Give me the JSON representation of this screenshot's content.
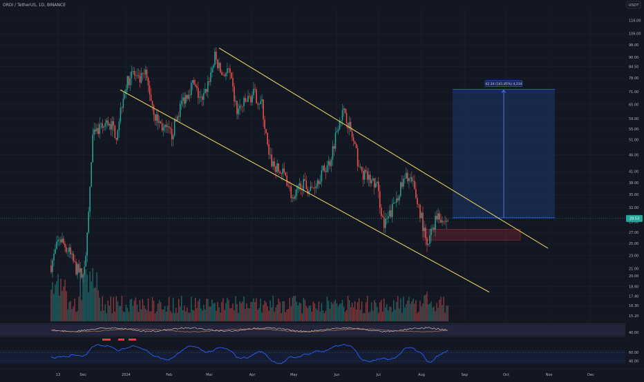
{
  "header": {
    "symbol": "ORDI / TetherUS, 1D, BINANCE"
  },
  "price_axis": {
    "currency": "USDT",
    "labels": [
      "116.00",
      "106.00",
      "98.00",
      "90.00",
      "84.50",
      "78.00",
      "71.00",
      "65.00",
      "59.00",
      "55.00",
      "51.00",
      "46.00",
      "41.00",
      "38.00",
      "35.00",
      "32.00",
      "29.00",
      "27.00",
      "25.00",
      "23.00",
      "21.00",
      "20.00",
      "18.60",
      "17.40",
      "16.30",
      "15.20"
    ],
    "current_price_tag": "29.53",
    "range": [
      14.5,
      125
    ]
  },
  "time_axis": {
    "labels": [
      "13",
      "Dec",
      "2024",
      "Feb",
      "Mar",
      "Apr",
      "May",
      "Jun",
      "Jul",
      "Aug",
      "Sep",
      "Oct",
      "Nov",
      "Dec"
    ]
  },
  "measure": {
    "label": "42.34 (141.85%) 4,234",
    "from_price": 29.85,
    "to_price": 72.2
  },
  "demand_zone": {
    "low": 25.6,
    "high": 27.6
  },
  "channel": {
    "upper": {
      "from_price": 96.0,
      "to_price": 24.2
    },
    "lower": {
      "from_price": 72.0,
      "to_price": 17.9
    }
  },
  "rsi": {
    "labels": [
      "60.00",
      "40.00"
    ],
    "levels": [
      60,
      40
    ]
  },
  "oscillator": {
    "labels": [
      "40.00"
    ]
  },
  "colors": {
    "background": "#131722",
    "grid": "#1e222d",
    "text": "#b2b5be",
    "up": "#26a69a",
    "down": "#ef5350",
    "channel": "#e6d260",
    "measure_box": "#1f3f7a",
    "rsi_line": "#2962ff",
    "zone": "#f2364530"
  },
  "chart_data": {
    "type": "candlestick",
    "title": "ORDI / TetherUS, 1D, BINANCE",
    "ylim": [
      14.5,
      125
    ],
    "y_scale": "log",
    "x_range": [
      "2023-11-08",
      "2024-12-20"
    ],
    "anchors": [
      {
        "date": "2023-11-08",
        "price": 21.5
      },
      {
        "date": "2023-11-14",
        "price": 26.0
      },
      {
        "date": "2023-11-20",
        "price": 24.0
      },
      {
        "date": "2023-11-26",
        "price": 21.0
      },
      {
        "date": "2023-12-01",
        "price": 20.0
      },
      {
        "date": "2023-12-04",
        "price": 26.0
      },
      {
        "date": "2023-12-08",
        "price": 52.0
      },
      {
        "date": "2023-12-14",
        "price": 55.0
      },
      {
        "date": "2023-12-20",
        "price": 58.0
      },
      {
        "date": "2023-12-25",
        "price": 53.0
      },
      {
        "date": "2023-12-30",
        "price": 70.0
      },
      {
        "date": "2024-01-05",
        "price": 82.0
      },
      {
        "date": "2024-01-10",
        "price": 76.0
      },
      {
        "date": "2024-01-15",
        "price": 80.0
      },
      {
        "date": "2024-01-22",
        "price": 60.0
      },
      {
        "date": "2024-01-28",
        "price": 55.0
      },
      {
        "date": "2024-02-03",
        "price": 53.0
      },
      {
        "date": "2024-02-10",
        "price": 66.0
      },
      {
        "date": "2024-02-18",
        "price": 75.0
      },
      {
        "date": "2024-02-25",
        "price": 66.0
      },
      {
        "date": "2024-03-01",
        "price": 78.0
      },
      {
        "date": "2024-03-05",
        "price": 90.0
      },
      {
        "date": "2024-03-10",
        "price": 80.0
      },
      {
        "date": "2024-03-15",
        "price": 82.0
      },
      {
        "date": "2024-03-21",
        "price": 62.0
      },
      {
        "date": "2024-03-27",
        "price": 66.0
      },
      {
        "date": "2024-04-02",
        "price": 70.0
      },
      {
        "date": "2024-04-08",
        "price": 65.0
      },
      {
        "date": "2024-04-13",
        "price": 45.0
      },
      {
        "date": "2024-04-20",
        "price": 41.0
      },
      {
        "date": "2024-04-25",
        "price": 40.0
      },
      {
        "date": "2024-05-01",
        "price": 33.0
      },
      {
        "date": "2024-05-06",
        "price": 38.0
      },
      {
        "date": "2024-05-13",
        "price": 36.0
      },
      {
        "date": "2024-05-20",
        "price": 40.0
      },
      {
        "date": "2024-05-27",
        "price": 44.0
      },
      {
        "date": "2024-06-03",
        "price": 60.0
      },
      {
        "date": "2024-06-07",
        "price": 62.0
      },
      {
        "date": "2024-06-12",
        "price": 52.0
      },
      {
        "date": "2024-06-18",
        "price": 41.0
      },
      {
        "date": "2024-06-24",
        "price": 39.0
      },
      {
        "date": "2024-06-30",
        "price": 37.0
      },
      {
        "date": "2024-07-05",
        "price": 28.0
      },
      {
        "date": "2024-07-10",
        "price": 31.0
      },
      {
        "date": "2024-07-16",
        "price": 36.0
      },
      {
        "date": "2024-07-22",
        "price": 40.0
      },
      {
        "date": "2024-07-26",
        "price": 37.0
      },
      {
        "date": "2024-08-01",
        "price": 30.0
      },
      {
        "date": "2024-08-05",
        "price": 24.0
      },
      {
        "date": "2024-08-09",
        "price": 28.0
      },
      {
        "date": "2024-08-13",
        "price": 31.0
      },
      {
        "date": "2024-08-17",
        "price": 29.0
      },
      {
        "date": "2024-08-20",
        "price": 29.5
      }
    ]
  }
}
